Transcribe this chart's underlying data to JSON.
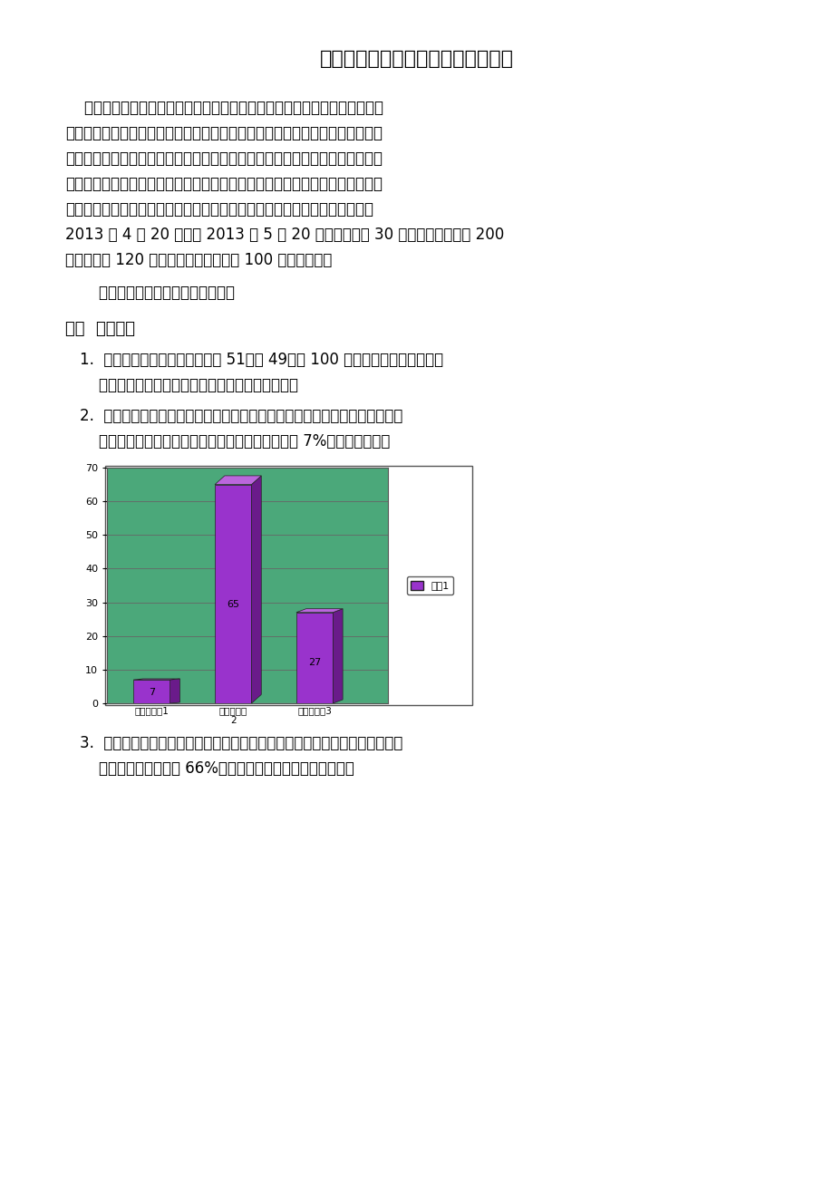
{
  "title": "黄淮学院大学生恋爱问题的调查报告",
  "para1_lines": [
    "    大学生恋爱问题，是当今大学校园和社会各方的热点话题，而大学生则被认",
    "为是未来社会的中坚力量，社会各方都对他们保持了高度的关注。本次调查主要",
    "通过对正处于恋爱中的大学生恋爱的现状、恋爱动机、选择对象标准、恋爱疑惑",
    "等方面进行调查，分析当今大学生的恋爱观和存在的问题，并以其为依据提出合",
    "理的建议，从而帮助大学生培养正确的恋爱观，促使其身心健康成长。调查于",
    "2013 年 4 月 20 日始至 2013 年 5 月 20 日止，共历时 30 天，发出邮件问卷 200",
    "份，总回收 120 份，抽取其中有效问卷 100 份进行分析。"
  ],
  "para2": "    具体的调查结果和分析结论如下：",
  "section1": "一、  基本情况",
  "item1_lines": [
    "1.  本次调查的男女比例相当：男 51，女 49，共 100 人。该比例跟现实生活中",
    "    男多女少的现状相似，有助于调查结果的准确性。"
  ],
  "item2_lines": [
    "2.  在有关恋爱观的家庭教育方面，绝大多数的人未接受过恋爱观的家庭教育或",
    "    接受很少的教育，其中接受过很多家庭教育的仅占 7%。详情如下图："
  ],
  "item3_lines": [
    "3.  对孩子的恋爱的态度，绝大数的父母是既不反对也不支持的，思想较开明，",
    "    具体占调查总人数的 66%，但也有个别情况。详情如下图："
  ],
  "bar_values": [
    7,
    65,
    27
  ],
  "bar_labels": [
    "接受过很多1",
    "接受过一点\n2",
    "没有接受过3"
  ],
  "bar_color_front": "#9933CC",
  "bar_color_side": "#6A1B8A",
  "bar_color_top": "#BB66DD",
  "chart_bg": "#4BA87A",
  "legend_label": "系列1",
  "ylim": [
    0,
    70
  ],
  "yticks": [
    0,
    10,
    20,
    30,
    40,
    50,
    60,
    70
  ],
  "page_bg": "#FFFFFF",
  "text_color": "#000000"
}
